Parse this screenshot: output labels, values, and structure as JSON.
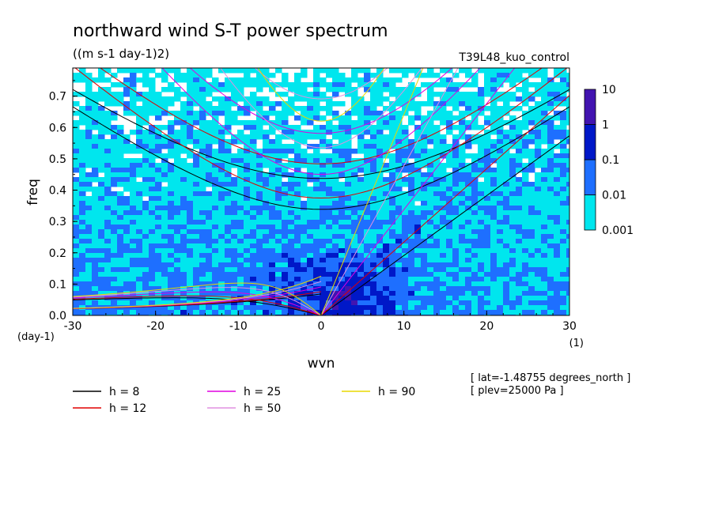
{
  "chart_data": {
    "type": "heatmap",
    "title": "northward wind S-T power spectrum",
    "subtitle": "((m s-1 day-1)2)",
    "run_label": "T39L48_kuo_control",
    "xlabel": "wvn",
    "xunit": "(1)",
    "ylabel": "freq",
    "yunit": "(day-1)",
    "xlim": [
      -30,
      30
    ],
    "ylim": [
      0,
      0.79
    ],
    "x_ticks": [
      -30,
      -20,
      -10,
      0,
      10,
      20,
      30
    ],
    "x_tick_labels": [
      "-30",
      "-20",
      "-10",
      "0",
      "10",
      "20",
      "30"
    ],
    "y_ticks": [
      0.0,
      0.1,
      0.2,
      0.3,
      0.4,
      0.5,
      0.6,
      0.7
    ],
    "y_tick_labels": [
      "0.0",
      "0.1",
      "0.2",
      "0.3",
      "0.4",
      "0.5",
      "0.6",
      "0.7"
    ],
    "colorbar": {
      "levels": [
        0.001,
        0.01,
        0.1,
        1,
        10
      ],
      "level_labels": [
        "0.001",
        "0.01",
        "0.1",
        "1",
        "10"
      ],
      "colors": [
        "#00e6ee",
        "#1e6fff",
        "#0018c8",
        "#4214b0"
      ]
    },
    "dispersion_curves": [
      {
        "name": "h = 8",
        "h": 8,
        "color": "#000000"
      },
      {
        "name": "h = 12",
        "h": 12,
        "color": "#e00000"
      },
      {
        "name": "h = 25",
        "h": 25,
        "color": "#e000e0"
      },
      {
        "name": "h = 50",
        "h": 50,
        "color": "#e090e0"
      },
      {
        "name": "h = 90",
        "h": 90,
        "color": "#e8d800"
      }
    ],
    "legend_labels": [
      "h =  8",
      "h = 12",
      "h = 25",
      "h = 50",
      "h = 90"
    ],
    "annotations": [
      "[ lat=-1.48755 degrees_north ]",
      "[ plev=25000 Pa ]"
    ],
    "grid": false,
    "legend_position": "bottom"
  }
}
